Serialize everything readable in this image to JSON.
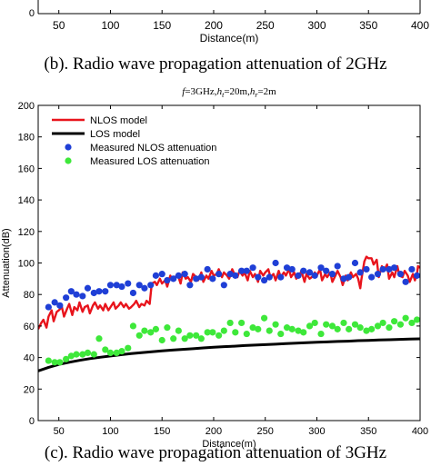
{
  "caption_b": "(b). Radio wave propagation attenuation of 2GHz",
  "caption_c": "(c). Radio wave propagation attenuation of 3GHz",
  "chart_data": [
    {
      "type": "line",
      "partial": true,
      "xlabel": "Distance(m)",
      "xticks": [
        50,
        100,
        150,
        200,
        250,
        300,
        350,
        400
      ],
      "xlim": [
        30,
        400
      ]
    },
    {
      "type": "line",
      "title_parts": [
        "f",
        "=3GHz,",
        "h",
        "t",
        "=20m,",
        "h",
        "r",
        "=2m"
      ],
      "xlabel": "Distance(m)",
      "ylabel": "Attenuation(dB)",
      "xlim": [
        30,
        400
      ],
      "ylim": [
        0,
        200
      ],
      "xticks": [
        50,
        100,
        150,
        200,
        250,
        300,
        350,
        400
      ],
      "yticks": [
        0,
        20,
        40,
        60,
        80,
        100,
        120,
        140,
        160,
        180,
        200
      ],
      "grid": false,
      "legend_position": "top-left",
      "colors": {
        "nlos_model": "#e8141c",
        "los_model": "#000000",
        "measured_nlos": "#1f3fd6",
        "measured_los": "#3ee83a"
      },
      "series": [
        {
          "name": "NLOS model",
          "kind": "line",
          "color": "#e8141c",
          "x": [
            30,
            33,
            35,
            38,
            40,
            43,
            45,
            48,
            50,
            53,
            55,
            58,
            60,
            63,
            65,
            68,
            70,
            73,
            75,
            78,
            80,
            83,
            85,
            88,
            90,
            93,
            95,
            98,
            100,
            103,
            105,
            108,
            110,
            113,
            115,
            118,
            120,
            123,
            125,
            128,
            130,
            133,
            135,
            138,
            140,
            143,
            145,
            148,
            150,
            153,
            155,
            158,
            160,
            163,
            165,
            168,
            170,
            173,
            175,
            178,
            180,
            183,
            185,
            188,
            190,
            193,
            195,
            198,
            200,
            203,
            205,
            208,
            210,
            213,
            215,
            218,
            220,
            223,
            225,
            228,
            230,
            233,
            235,
            238,
            240,
            243,
            245,
            248,
            250,
            253,
            255,
            258,
            260,
            263,
            265,
            268,
            270,
            273,
            275,
            278,
            280,
            283,
            285,
            288,
            290,
            293,
            295,
            298,
            300,
            303,
            305,
            308,
            310,
            313,
            315,
            318,
            320,
            323,
            325,
            328,
            330,
            333,
            335,
            338,
            340,
            342,
            343,
            346,
            348,
            350,
            353,
            355,
            358,
            360,
            363,
            365,
            368,
            370,
            373,
            375,
            378,
            380,
            383,
            385,
            388,
            390,
            393,
            395,
            397,
            398,
            400
          ],
          "y": [
            58,
            62,
            64,
            59,
            66,
            70,
            63,
            69,
            70,
            72,
            66,
            71,
            74,
            67,
            72,
            70,
            75,
            69,
            72,
            73,
            68,
            73,
            75,
            71,
            73,
            70,
            74,
            70,
            72,
            75,
            71,
            73,
            75,
            72,
            74,
            71,
            72,
            74,
            76,
            72,
            74,
            73,
            76,
            74,
            87,
            88,
            86,
            90,
            87,
            89,
            85,
            92,
            89,
            91,
            93,
            87,
            94,
            90,
            91,
            88,
            93,
            91,
            89,
            94,
            88,
            92,
            90,
            95,
            92,
            93,
            96,
            91,
            94,
            92,
            90,
            96,
            93,
            91,
            95,
            92,
            94,
            89,
            95,
            91,
            93,
            88,
            95,
            92,
            94,
            96,
            91,
            93,
            89,
            95,
            91,
            94,
            92,
            96,
            91,
            94,
            90,
            92,
            95,
            88,
            93,
            90,
            91,
            94,
            92,
            96,
            89,
            93,
            91,
            94,
            88,
            92,
            95,
            91,
            86,
            92,
            89,
            94,
            91,
            93,
            90,
            84,
            89,
            101,
            104,
            103,
            103,
            99,
            102,
            91,
            98,
            95,
            99,
            90,
            94,
            91,
            98,
            92,
            91,
            95,
            92,
            88,
            93,
            89,
            93,
            98,
            97
          ]
        },
        {
          "name": "LOS model",
          "kind": "line",
          "color": "#000000",
          "x": [
            30,
            40,
            50,
            60,
            70,
            80,
            90,
            100,
            110,
            120,
            130,
            140,
            150,
            160,
            170,
            180,
            190,
            200,
            210,
            220,
            230,
            240,
            250,
            260,
            270,
            280,
            290,
            300,
            310,
            320,
            330,
            340,
            350,
            360,
            370,
            380,
            390,
            400
          ],
          "y": [
            31.5,
            33.8,
            35.6,
            37.0,
            38.2,
            39.3,
            40.2,
            41.0,
            41.8,
            42.5,
            43.1,
            43.7,
            44.2,
            44.7,
            45.2,
            45.6,
            46.1,
            46.5,
            46.9,
            47.2,
            47.6,
            47.9,
            48.2,
            48.5,
            48.8,
            49.1,
            49.4,
            49.7,
            49.9,
            50.2,
            50.4,
            50.7,
            50.9,
            51.1,
            51.3,
            51.5,
            51.7,
            51.9
          ]
        },
        {
          "name": "Measured NLOS attenuation",
          "kind": "scatter",
          "color": "#1f3fd6",
          "x": [
            40,
            46,
            51,
            57,
            62,
            67,
            73,
            78,
            84,
            89,
            95,
            100,
            106,
            111,
            117,
            122,
            128,
            133,
            139,
            144,
            150,
            155,
            161,
            166,
            172,
            177,
            183,
            188,
            194,
            199,
            205,
            210,
            216,
            221,
            227,
            232,
            238,
            243,
            249,
            254,
            260,
            265,
            271,
            276,
            282,
            287,
            293,
            298,
            304,
            309,
            315,
            320,
            326,
            331,
            337,
            342,
            348,
            353,
            359,
            364,
            370,
            375,
            381,
            386,
            392,
            397
          ],
          "y": [
            72,
            75,
            73,
            78,
            82,
            80,
            79,
            84,
            81,
            82,
            82,
            86,
            86,
            85,
            87,
            81,
            86,
            84,
            86,
            92,
            93,
            89,
            90,
            92,
            93,
            86,
            90,
            91,
            96,
            90,
            93,
            86,
            93,
            92,
            95,
            95,
            97,
            91,
            89,
            91,
            100,
            91,
            97,
            96,
            92,
            95,
            94,
            92,
            97,
            95,
            93,
            98,
            90,
            91,
            100,
            94,
            96,
            91,
            93,
            96,
            96,
            97,
            93,
            88,
            96,
            92
          ]
        },
        {
          "name": "Measured LOS attenuation",
          "kind": "scatter",
          "color": "#3ee83a",
          "x": [
            40,
            46,
            51,
            57,
            62,
            67,
            73,
            78,
            84,
            89,
            95,
            100,
            106,
            111,
            117,
            122,
            128,
            133,
            139,
            144,
            150,
            155,
            161,
            166,
            172,
            177,
            183,
            188,
            194,
            199,
            205,
            210,
            216,
            221,
            227,
            232,
            238,
            243,
            249,
            254,
            260,
            265,
            271,
            276,
            282,
            287,
            293,
            298,
            304,
            309,
            315,
            320,
            326,
            331,
            337,
            342,
            348,
            353,
            359,
            364,
            370,
            375,
            381,
            386,
            392,
            397
          ],
          "y": [
            38,
            37,
            37,
            39,
            41,
            42,
            42,
            43,
            42,
            52,
            45,
            43,
            43,
            44,
            46,
            60,
            54,
            57,
            56,
            58,
            51,
            59,
            52,
            57,
            52,
            54,
            54,
            52,
            56,
            56,
            54,
            57,
            62,
            56,
            62,
            55,
            59,
            58,
            65,
            57,
            61,
            55,
            59,
            58,
            57,
            56,
            60,
            62,
            55,
            61,
            60,
            58,
            62,
            58,
            61,
            59,
            57,
            58,
            60,
            62,
            59,
            63,
            61,
            65,
            62,
            64
          ]
        }
      ]
    }
  ]
}
